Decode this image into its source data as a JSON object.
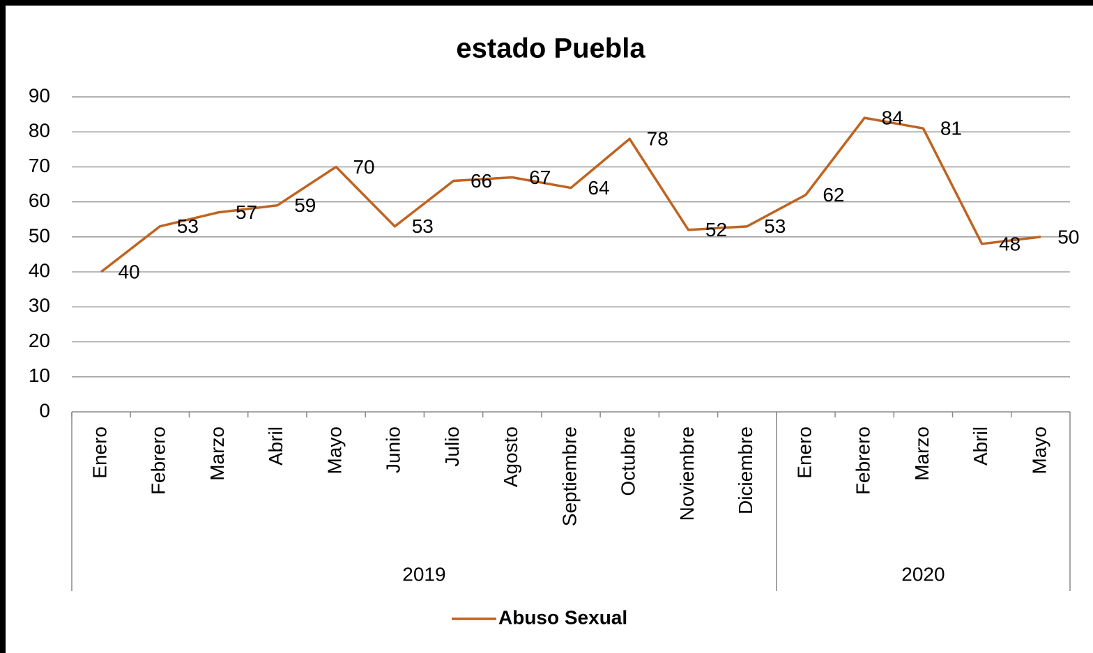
{
  "chart_data": {
    "type": "line",
    "title": "estado Puebla",
    "groups": [
      {
        "label": "2019",
        "categories": [
          "Enero",
          "Febrero",
          "Marzo",
          "Abril",
          "Mayo",
          "Junio",
          "Julio",
          "Agosto",
          "Septiembre",
          "Octubre",
          "Noviembre",
          "Diciembre"
        ]
      },
      {
        "label": "2020",
        "categories": [
          "Enero",
          "Febrero",
          "Marzo",
          "Abril",
          "Mayo"
        ]
      }
    ],
    "series": [
      {
        "name": "Abuso Sexual",
        "color": "#c0631f",
        "values": [
          40,
          53,
          57,
          59,
          70,
          53,
          66,
          67,
          64,
          78,
          52,
          53,
          62,
          84,
          81,
          48,
          50
        ]
      }
    ],
    "ylim": [
      0,
      90
    ],
    "yticks": [
      0,
      10,
      20,
      30,
      40,
      50,
      60,
      70,
      80,
      90
    ],
    "grid": true,
    "legend": "bottom"
  }
}
